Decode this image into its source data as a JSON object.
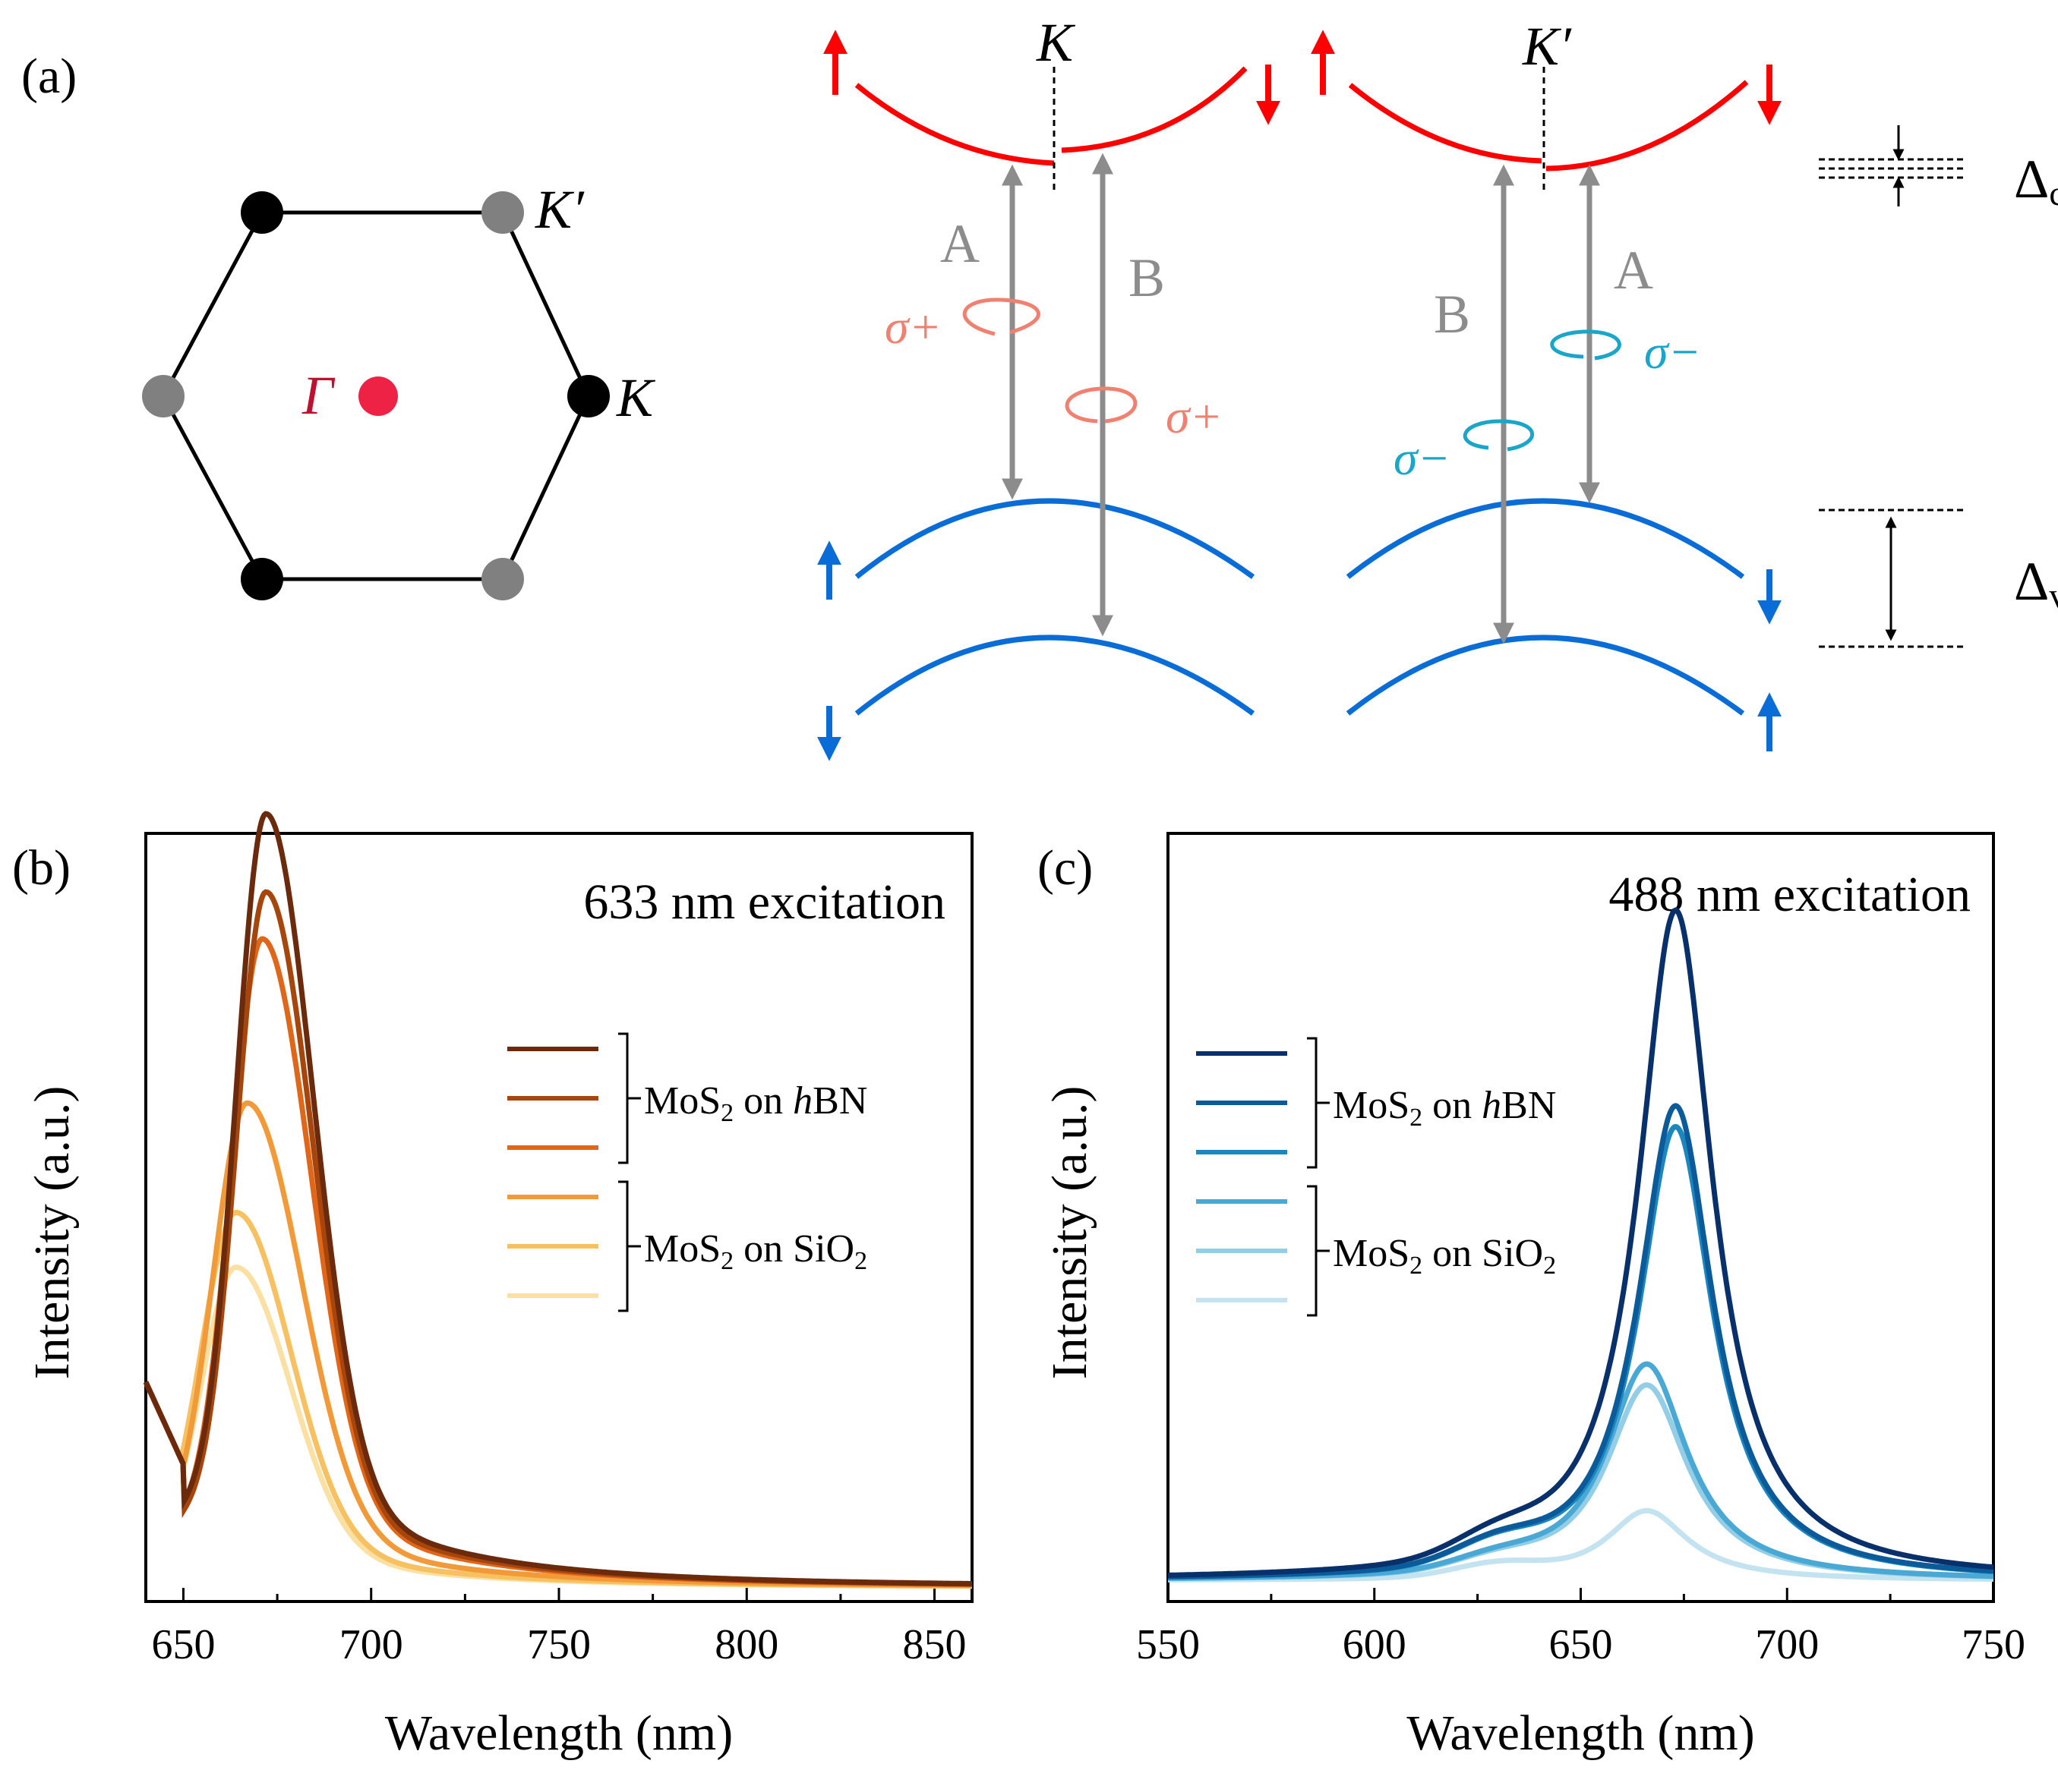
{
  "panel_labels": {
    "a": "(a)",
    "b": "(b)",
    "c": "(c)"
  },
  "brillouin": {
    "gamma": "Γ",
    "k": "K",
    "k_prime": "K′",
    "gamma_color": "#ee2244",
    "k_color": "#000000",
    "k_prime_color": "#808080"
  },
  "band_diagram": {
    "valley_k": "K",
    "valley_k_prime": "K′",
    "transition_a": "A",
    "transition_b": "B",
    "sigma_plus": "σ+",
    "sigma_minus": "σ−",
    "delta_c": "Δ",
    "delta_c_sub": "c",
    "delta_v": "Δ",
    "delta_v_sub": "v",
    "conduction_color": "#ff0000",
    "valence_color": "#0a6cd6",
    "arrow_color": "#8c8c8c",
    "sigma_plus_color": "#f08070",
    "sigma_minus_color": "#1aa6c8"
  },
  "chart_data": [
    {
      "type": "line",
      "panel": "b",
      "title": "633 nm excitation",
      "xlabel": "Wavelength (nm)",
      "ylabel": "Intensity (a.u.)",
      "xlim": [
        640,
        860
      ],
      "ylim": [
        0,
        1.12
      ],
      "xticks": [
        650,
        700,
        750,
        800,
        850
      ],
      "legend": {
        "groups": [
          {
            "label_main": "MoS",
            "label_sub": "2",
            "label_rest": " on ",
            "label_italic": "h",
            "label_end": "BN",
            "series": [
              0,
              1,
              2
            ]
          },
          {
            "label_main": "MoS",
            "label_sub": "2",
            "label_rest": " on SiO",
            "label_sub2": "2",
            "series": [
              3,
              4,
              5
            ]
          }
        ]
      },
      "series": [
        {
          "name": "MoS2 on hBN 1",
          "color": "#6b2a0c",
          "peak_x": 672,
          "peak_y": 0.99,
          "width": 13
        },
        {
          "name": "MoS2 on hBN 2",
          "color": "#a7460c",
          "peak_x": 672,
          "peak_y": 0.89,
          "width": 13
        },
        {
          "name": "MoS2 on hBN 3",
          "color": "#e0671a",
          "peak_x": 671,
          "peak_y": 0.83,
          "width": 13.5
        },
        {
          "name": "MoS2 on SiO2 1",
          "color": "#f29a38",
          "peak_x": 667,
          "peak_y": 0.62,
          "width": 15
        },
        {
          "name": "MoS2 on SiO2 2",
          "color": "#f7c060",
          "peak_x": 664,
          "peak_y": 0.48,
          "width": 15
        },
        {
          "name": "MoS2 on SiO2 3",
          "color": "#fbe0a4",
          "peak_x": 664,
          "peak_y": 0.41,
          "width": 15
        }
      ]
    },
    {
      "type": "line",
      "panel": "c",
      "title": "488 nm excitation",
      "xlabel": "Wavelength (nm)",
      "ylabel": "Intensity (a.u.)",
      "xlim": [
        550,
        750
      ],
      "ylim": [
        0,
        1.1
      ],
      "xticks": [
        550,
        600,
        650,
        700,
        750
      ],
      "legend": {
        "groups": [
          {
            "label_main": "MoS",
            "label_sub": "2",
            "label_rest": " on ",
            "label_italic": "h",
            "label_end": "BN",
            "series": [
              0,
              1,
              2
            ]
          },
          {
            "label_main": "MoS",
            "label_sub": "2",
            "label_rest": " on SiO",
            "label_sub2": "2",
            "series": [
              3,
              4,
              5
            ]
          }
        ]
      },
      "series": [
        {
          "name": "MoS2 on hBN 1",
          "color": "#08306b",
          "peak_x": 673,
          "peak_y": 0.96,
          "width": 11
        },
        {
          "name": "MoS2 on hBN 2",
          "color": "#0b5b9a",
          "peak_x": 673,
          "peak_y": 0.68,
          "width": 11
        },
        {
          "name": "MoS2 on hBN 3",
          "color": "#1c86bf",
          "peak_x": 673,
          "peak_y": 0.65,
          "width": 11
        },
        {
          "name": "MoS2 on SiO2 1",
          "color": "#4aa8d4",
          "peak_x": 666,
          "peak_y": 0.31,
          "width": 12
        },
        {
          "name": "MoS2 on SiO2 2",
          "color": "#93cde6",
          "peak_x": 666,
          "peak_y": 0.28,
          "width": 12
        },
        {
          "name": "MoS2 on SiO2 3",
          "color": "#c4e3f1",
          "peak_x": 666,
          "peak_y": 0.1,
          "width": 12
        }
      ]
    }
  ]
}
